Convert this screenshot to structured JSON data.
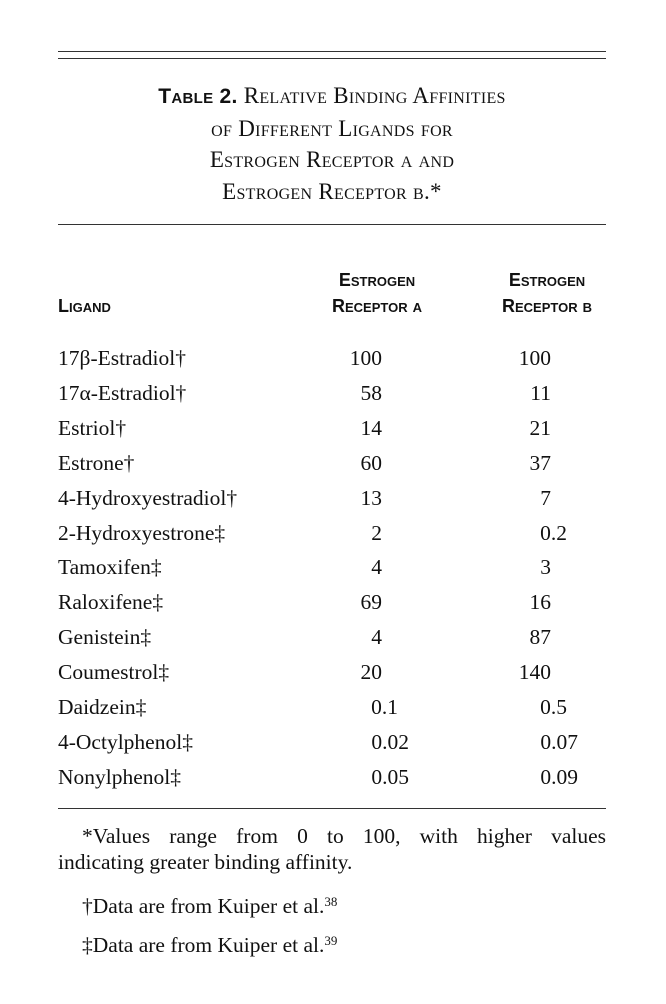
{
  "table": {
    "label": "Table 2.",
    "title_lines": [
      "Relative Binding Affinities",
      "of Different Ligands for",
      "Estrogen Receptor α and",
      "Estrogen Receptor β.*"
    ],
    "headers": {
      "ligand": "Ligand",
      "era_line1": "Estrogen",
      "era_line2": "Receptor α",
      "erb_line1": "Estrogen",
      "erb_line2": "Receptor β"
    },
    "rows": [
      {
        "ligand": "17β-Estradiol†",
        "era": "100",
        "erb": "100"
      },
      {
        "ligand": "17α-Estradiol†",
        "era": "58",
        "erb": "11"
      },
      {
        "ligand": "Estriol†",
        "era": "14",
        "erb": "21"
      },
      {
        "ligand": "Estrone†",
        "era": "60",
        "erb": "37"
      },
      {
        "ligand": "4-Hydroxyestradiol†",
        "era": "13",
        "erb": "7"
      },
      {
        "ligand": "2-Hydroxyestrone‡",
        "era": "2",
        "erb": "0.2"
      },
      {
        "ligand": "Tamoxifen‡",
        "era": "4",
        "erb": "3"
      },
      {
        "ligand": "Raloxifene‡",
        "era": "69",
        "erb": "16"
      },
      {
        "ligand": "Genistein‡",
        "era": "4",
        "erb": "87"
      },
      {
        "ligand": "Coumestrol‡",
        "era": "20",
        "erb": "140"
      },
      {
        "ligand": "Daidzein‡",
        "era": "0.1",
        "erb": "0.5"
      },
      {
        "ligand": "4-Octylphenol‡",
        "era": "0.02",
        "erb": "0.07"
      },
      {
        "ligand": "Nonylphenol‡",
        "era": "0.05",
        "erb": "0.09"
      }
    ],
    "footnotes": {
      "star_line1": "*Values range from 0 to 100, with higher values",
      "star_line2": "indicating greater binding affinity.",
      "dagger": "†Data are from Kuiper et al.",
      "dagger_ref": "38",
      "ddagger": "‡Data are from Kuiper et al.",
      "ddagger_ref": "39"
    }
  }
}
